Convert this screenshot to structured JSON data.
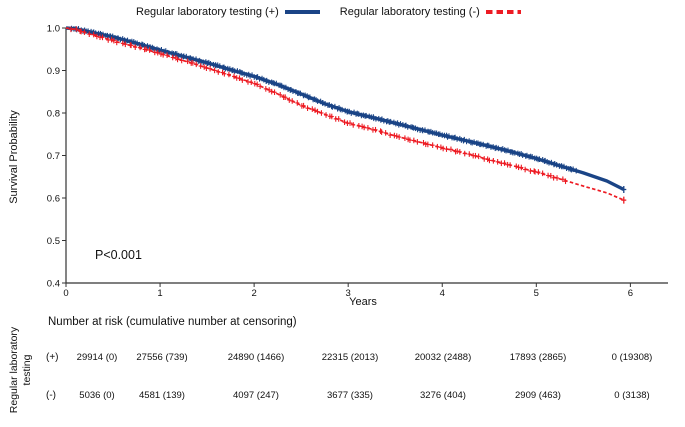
{
  "legend": {
    "items": [
      {
        "label": "Regular laboratory testing (+)",
        "color": "#1a4486",
        "style": "solid"
      },
      {
        "label": "Regular laboratory testing (-)",
        "color": "#ed1b23",
        "style": "dashed"
      }
    ]
  },
  "chart_data": {
    "type": "line",
    "subtype": "kaplan-meier-survival",
    "title": "",
    "xlabel": "Years",
    "ylabel": "Survival Probability",
    "xlim": [
      0,
      6.4
    ],
    "ylim": [
      0.4,
      1.0
    ],
    "x_ticks": [
      0,
      1,
      2,
      3,
      4,
      5,
      6
    ],
    "y_ticks": [
      0.4,
      0.5,
      0.6,
      0.7,
      0.8,
      0.9,
      1.0
    ],
    "grid": false,
    "legend_position": "top",
    "annotation": "P<0.001",
    "series": [
      {
        "name": "Regular laboratory testing (+)",
        "color": "#1a4486",
        "line_style": "solid",
        "line_width": 3.4,
        "x": [
          0,
          0.1,
          0.25,
          0.5,
          0.75,
          1,
          1.25,
          1.5,
          1.75,
          2,
          2.25,
          2.5,
          2.75,
          3,
          3.25,
          3.5,
          3.75,
          4,
          4.25,
          4.5,
          4.75,
          5,
          5.25,
          5.5,
          5.75,
          5.93
        ],
        "y": [
          1.0,
          0.998,
          0.991,
          0.979,
          0.964,
          0.948,
          0.933,
          0.918,
          0.902,
          0.886,
          0.867,
          0.845,
          0.822,
          0.803,
          0.79,
          0.776,
          0.762,
          0.748,
          0.735,
          0.722,
          0.708,
          0.693,
          0.676,
          0.659,
          0.64,
          0.62
        ],
        "censor_marks": {
          "from": 0.06,
          "to": 5.42,
          "step": 0.02
        }
      },
      {
        "name": "Regular laboratory testing (-)",
        "color": "#ed1b23",
        "line_style": "dashed",
        "line_width": 1.7,
        "dash": "3.5 2.3",
        "x": [
          0,
          0.1,
          0.25,
          0.5,
          0.75,
          1,
          1.25,
          1.5,
          1.75,
          2,
          2.25,
          2.5,
          2.75,
          3,
          3.25,
          3.5,
          3.75,
          4,
          4.25,
          4.5,
          4.75,
          5,
          5.25,
          5.5,
          5.75,
          5.93
        ],
        "y": [
          1.0,
          0.997,
          0.986,
          0.97,
          0.955,
          0.94,
          0.923,
          0.906,
          0.888,
          0.87,
          0.845,
          0.818,
          0.797,
          0.776,
          0.762,
          0.746,
          0.732,
          0.718,
          0.705,
          0.69,
          0.676,
          0.661,
          0.645,
          0.628,
          0.612,
          0.595
        ],
        "censor_marks": {
          "from": 0.06,
          "to": 5.32,
          "step": 0.038
        }
      }
    ]
  },
  "risk_table": {
    "title": "Number at risk (cumulative number at censoring)",
    "group_label": "Regular laboratory testing",
    "rows": [
      {
        "label": "(+)",
        "values": [
          "29914 (0)",
          "27556 (739)",
          "24890 (1466)",
          "22315 (2013)",
          "20032 (2488)",
          "17893 (2865)",
          "0 (19308)"
        ]
      },
      {
        "label": "(-)",
        "values": [
          "5036 (0)",
          "4581 (139)",
          "4097 (247)",
          "3677 (335)",
          "3276 (404)",
          "2909 (463)",
          "0 (3138)"
        ]
      }
    ]
  }
}
